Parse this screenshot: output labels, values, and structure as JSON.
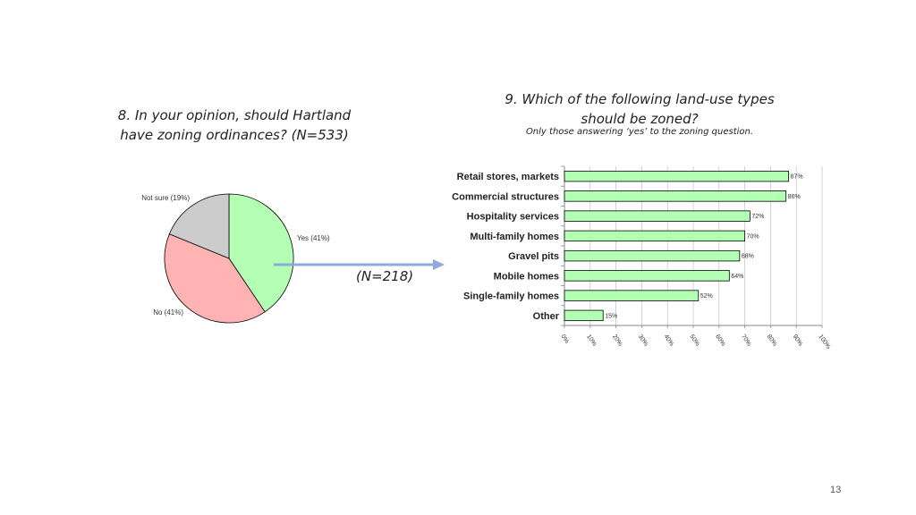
{
  "slide_number": "13",
  "arrow_label": "(N=218)",
  "chart_data": [
    {
      "type": "pie",
      "title": "8. In your opinion, should Hartland have zoning ordinances? (N=533)",
      "slices": [
        {
          "label": "Yes (41%)",
          "value": 41,
          "color": "#b3ffb3"
        },
        {
          "label": "No (41%)",
          "value": 41,
          "color": "#ffb3b3"
        },
        {
          "label": "Not sure (19%)",
          "value": 19,
          "color": "#cccccc"
        }
      ]
    },
    {
      "type": "bar",
      "orientation": "horizontal",
      "title": "9. Which of the following land-use types should be zoned?",
      "subtitle": "Only those answering ‘yes’ to the zoning question.",
      "categories": [
        "Retail stores, markets",
        "Commercial structures",
        "Hospitality services",
        "Multi-family homes",
        "Gravel pits",
        "Mobile homes",
        "Single-family homes",
        "Other"
      ],
      "values": [
        87,
        86,
        72,
        70,
        68,
        64,
        52,
        15
      ],
      "value_labels": [
        "87%",
        "86%",
        "72%",
        "70%",
        "68%",
        "64%",
        "52%",
        "15%"
      ],
      "xlim": [
        0,
        100
      ],
      "xticks": [
        "0%",
        "10%",
        "20%",
        "30%",
        "40%",
        "50%",
        "60%",
        "70%",
        "80%",
        "90%",
        "100%"
      ],
      "bar_color": "#b3ffb3",
      "grid": true
    }
  ]
}
